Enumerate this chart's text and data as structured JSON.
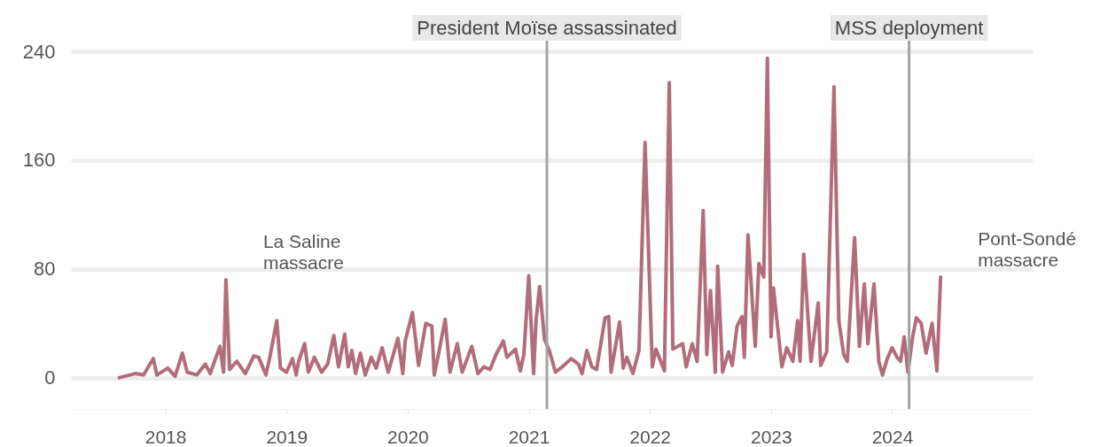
{
  "chart_data": {
    "type": "line",
    "x": [
      2017.62,
      2017.75,
      2017.82,
      2017.9,
      2017.93,
      2018.02,
      2018.08,
      2018.14,
      2018.18,
      2018.26,
      2018.33,
      2018.37,
      2018.45,
      2018.48,
      2018.5,
      2018.53,
      2018.59,
      2018.66,
      2018.73,
      2018.77,
      2018.83,
      2018.86,
      2018.92,
      2018.95,
      2019.0,
      2019.05,
      2019.08,
      2019.1,
      2019.15,
      2019.18,
      2019.23,
      2019.29,
      2019.34,
      2019.39,
      2019.43,
      2019.48,
      2019.51,
      2019.54,
      2019.57,
      2019.61,
      2019.65,
      2019.7,
      2019.74,
      2019.79,
      2019.84,
      2019.92,
      2019.96,
      2019.98,
      2020.04,
      2020.09,
      2020.15,
      2020.2,
      2020.22,
      2020.25,
      2020.31,
      2020.35,
      2020.41,
      2020.45,
      2020.53,
      2020.58,
      2020.63,
      2020.68,
      2020.73,
      2020.79,
      2020.82,
      2020.89,
      2020.93,
      2020.96,
      2021.0,
      2021.04,
      2021.06,
      2021.09,
      2021.13,
      2021.17,
      2021.22,
      2021.29,
      2021.35,
      2021.41,
      2021.44,
      2021.48,
      2021.52,
      2021.56,
      2021.63,
      2021.66,
      2021.68,
      2021.75,
      2021.78,
      2021.81,
      2021.86,
      2021.91,
      2021.96,
      2022.02,
      2022.05,
      2022.12,
      2022.16,
      2022.19,
      2022.27,
      2022.3,
      2022.35,
      2022.39,
      2022.44,
      2022.47,
      2022.5,
      2022.54,
      2022.56,
      2022.6,
      2022.65,
      2022.68,
      2022.72,
      2022.76,
      2022.78,
      2022.81,
      2022.87,
      2022.9,
      2022.94,
      2022.97,
      2023.0,
      2023.02,
      2023.09,
      2023.13,
      2023.18,
      2023.22,
      2023.24,
      2023.27,
      2023.33,
      2023.39,
      2023.41,
      2023.46,
      2023.52,
      2023.56,
      2023.6,
      2023.63,
      2023.69,
      2023.73,
      2023.77,
      2023.8,
      2023.85,
      2023.89,
      2023.92,
      2023.96,
      2024.0,
      2024.04,
      2024.07,
      2024.1,
      2024.13,
      2024.17,
      2024.2,
      2024.24,
      2024.28,
      2024.33,
      2024.37,
      2024.4
    ],
    "series": [
      {
        "color": "#b26d7c",
        "values": [
          0,
          3,
          2,
          14,
          2,
          7,
          1,
          18,
          4,
          2,
          10,
          3,
          23,
          4,
          72,
          6,
          12,
          3,
          16,
          15,
          2,
          14,
          42,
          7,
          4,
          14,
          2,
          12,
          25,
          4,
          15,
          4,
          10,
          31,
          8,
          32,
          8,
          20,
          3,
          18,
          2,
          15,
          7,
          22,
          4,
          29,
          3,
          27,
          48,
          9,
          40,
          38,
          2,
          15,
          43,
          4,
          25,
          4,
          23,
          3,
          8,
          6,
          17,
          27,
          15,
          21,
          5,
          17,
          75,
          3,
          42,
          67,
          28,
          20,
          4,
          9,
          14,
          10,
          3,
          20,
          8,
          6,
          44,
          45,
          4,
          41,
          7,
          15,
          3,
          20,
          173,
          8,
          21,
          5,
          217,
          21,
          25,
          8,
          25,
          12,
          123,
          17,
          64,
          4,
          82,
          4,
          19,
          9,
          38,
          45,
          15,
          105,
          23,
          84,
          74,
          235,
          30,
          66,
          8,
          22,
          12,
          42,
          12,
          91,
          12,
          55,
          9,
          19,
          214,
          42,
          17,
          12,
          103,
          23,
          69,
          25,
          69,
          12,
          2,
          14,
          22,
          15,
          12,
          30,
          4,
          30,
          44,
          40,
          18,
          40,
          5,
          74
        ]
      }
    ],
    "xlim": [
      2017.22,
      2025.16
    ],
    "ylim": [
      -23,
      240
    ],
    "xticks": [
      2018,
      2019,
      2020,
      2021,
      2022,
      2023,
      2024
    ],
    "yticks": [
      0,
      80,
      160,
      240
    ],
    "grid": "y",
    "ref_lines": [
      {
        "axis": "x",
        "value": 2021.15,
        "label": "President Moïse assassinated",
        "color": "#a3a3a3"
      },
      {
        "axis": "x",
        "value": 2024.14,
        "label": "MSS deployment",
        "color": "#a3a3a3"
      }
    ],
    "annotations": [
      {
        "text": "La Saline\nmassacre",
        "x": 2018.5,
        "y": 72
      },
      {
        "text": "Pont-Sondé\nmassacre",
        "x": 2024.4,
        "y": 74
      }
    ]
  }
}
